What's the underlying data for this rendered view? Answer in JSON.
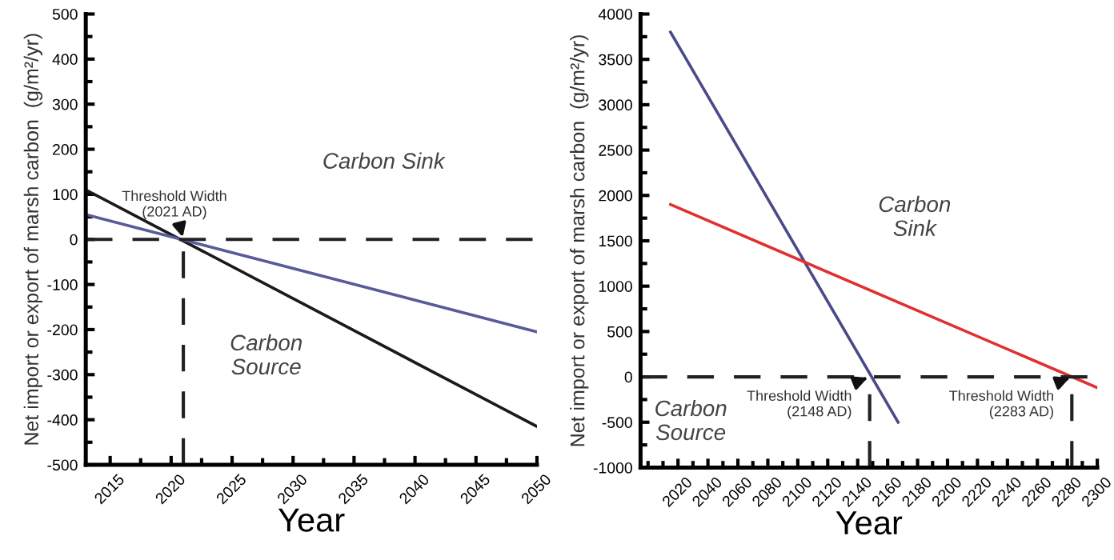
{
  "chart_data": [
    {
      "type": "line",
      "xlabel": "Year",
      "ylabel": "Net import or export of marsh carbon  (g/m²/yr)",
      "xlim": [
        2013,
        2050
      ],
      "xticks": [
        2015,
        2020,
        2025,
        2030,
        2035,
        2040,
        2045,
        2050
      ],
      "ylim": [
        -500,
        500
      ],
      "yticks": [
        -500,
        -400,
        -300,
        -200,
        -100,
        0,
        100,
        200,
        300,
        400,
        500
      ],
      "series": [
        {
          "color": "#1a1a1a",
          "x": [
            2013,
            2050
          ],
          "values": [
            110,
            -415
          ]
        },
        {
          "color": "#5a5a9a",
          "x": [
            2013,
            2050
          ],
          "values": [
            55,
            -205
          ]
        }
      ],
      "ref_lines": [
        {
          "axis": "y",
          "value": 0,
          "line_style": "dashed",
          "color": "#222222"
        },
        {
          "axis": "x",
          "value": 2021,
          "line_style": "dashed",
          "color": "#222222"
        }
      ],
      "annotations": [
        {
          "text": "Threshold Width\n(2021 AD)",
          "x": 2021,
          "y": 0
        },
        "Carbon Sink",
        "Carbon\nSource"
      ],
      "grid": false,
      "legend": false,
      "marker": "none",
      "line_style": "solid"
    },
    {
      "type": "line",
      "xlabel": "Year",
      "ylabel": "Net import or export of marsh carbon  (g/m²/yr)",
      "xlim": [
        1995,
        2300
      ],
      "xticks": [
        2020,
        2040,
        2060,
        2080,
        2100,
        2120,
        2140,
        2160,
        2180,
        2200,
        2220,
        2240,
        2260,
        2280,
        2300
      ],
      "ylim": [
        -1000,
        4000
      ],
      "yticks": [
        -1000,
        -500,
        0,
        500,
        1000,
        1500,
        2000,
        2500,
        3000,
        3500,
        4000
      ],
      "series": [
        {
          "color": "#4a4a8a",
          "x": [
            2015,
            2167
          ],
          "values": [
            3800,
            -500
          ]
        },
        {
          "color": "#e03030",
          "x": [
            2015,
            2300
          ],
          "values": [
            1900,
            -120
          ]
        }
      ],
      "ref_lines": [
        {
          "axis": "y",
          "value": 0,
          "line_style": "dashed",
          "color": "#222222"
        },
        {
          "axis": "x",
          "value": 2148,
          "line_style": "dashed",
          "color": "#222222"
        },
        {
          "axis": "x",
          "value": 2283,
          "line_style": "dashed",
          "color": "#222222"
        }
      ],
      "annotations": [
        {
          "text": "Threshold Width\n(2148 AD)",
          "x": 2148,
          "y": 0
        },
        {
          "text": "Threshold Width\n(2283 AD)",
          "x": 2283,
          "y": 0
        },
        "Carbon\nSink",
        "Carbon\nSource"
      ],
      "grid": false,
      "legend": false,
      "marker": "none",
      "line_style": "solid"
    }
  ]
}
